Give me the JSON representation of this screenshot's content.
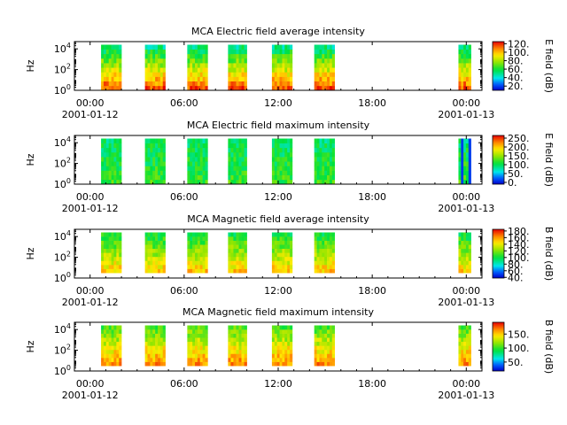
{
  "chart_data": [
    {
      "type": "heatmap",
      "title": "MCA  Electric field average intensity",
      "ylabel": "Hz",
      "colorbar_label": "E field (dB)",
      "colorbar_ticks": [
        "20.",
        "40.",
        "60.",
        "80.",
        "100.",
        "120."
      ],
      "colorbar_range": [
        10,
        125
      ],
      "yticks": [
        "10^0",
        "10^2",
        "10^4"
      ],
      "ylim_log10": [
        0,
        4.7
      ],
      "xticks": [
        "00:00",
        "06:00",
        "12:00",
        "18:00",
        "00:00"
      ],
      "xtick_dates": [
        "2001-01-12",
        "",
        "",
        "",
        "2001-01-13"
      ],
      "x_hours_range": [
        -1,
        25
      ],
      "data_intervals_hours": [
        [
          0.7,
          2.0
        ],
        [
          3.5,
          4.8
        ],
        [
          6.2,
          7.5
        ],
        [
          8.8,
          10.0
        ],
        [
          11.6,
          12.9
        ],
        [
          14.3,
          15.6
        ],
        [
          23.5,
          24.3
        ]
      ],
      "freq_range_log10": [
        0,
        4.4
      ],
      "typical_db_low_freq": 115,
      "typical_db_high_freq": 50
    },
    {
      "type": "heatmap",
      "title": "MCA  Electric field maximum intensity",
      "ylabel": "Hz",
      "colorbar_label": "E field (dB)",
      "colorbar_ticks": [
        "0.",
        "50.",
        "100.",
        "150.",
        "200.",
        "250."
      ],
      "colorbar_range": [
        -10,
        265
      ],
      "yticks": [
        "10^0",
        "10^2",
        "10^4"
      ],
      "ylim_log10": [
        0,
        4.7
      ],
      "xticks": [
        "00:00",
        "06:00",
        "12:00",
        "18:00",
        "00:00"
      ],
      "xtick_dates": [
        "2001-01-12",
        "",
        "",
        "",
        "2001-01-13"
      ],
      "x_hours_range": [
        -1,
        25
      ],
      "data_intervals_hours": [
        [
          0.7,
          2.0
        ],
        [
          3.5,
          4.8
        ],
        [
          6.2,
          7.5
        ],
        [
          8.8,
          10.0
        ],
        [
          11.6,
          12.9
        ],
        [
          14.3,
          15.6
        ],
        [
          23.5,
          24.3
        ]
      ],
      "freq_range_log10": [
        0,
        4.4
      ],
      "typical_db_low_freq": 120,
      "typical_db_high_freq": 95
    },
    {
      "type": "heatmap",
      "title": "MCA  Magnetic field average intensity",
      "ylabel": "Hz",
      "colorbar_label": "B field (dB)",
      "colorbar_ticks": [
        "40.",
        "60.",
        "80.",
        "100.",
        "120.",
        "140.",
        "160.",
        "180."
      ],
      "colorbar_range": [
        38,
        185
      ],
      "yticks": [
        "10^0",
        "10^2",
        "10^4"
      ],
      "ylim_log10": [
        0,
        4.7
      ],
      "xticks": [
        "00:00",
        "06:00",
        "12:00",
        "18:00",
        "00:00"
      ],
      "xtick_dates": [
        "2001-01-12",
        "",
        "",
        "",
        "2001-01-13"
      ],
      "x_hours_range": [
        -1,
        25
      ],
      "data_intervals_hours": [
        [
          0.7,
          2.0
        ],
        [
          3.5,
          4.8
        ],
        [
          6.2,
          7.5
        ],
        [
          8.8,
          10.0
        ],
        [
          11.6,
          12.9
        ],
        [
          14.3,
          15.6
        ],
        [
          23.5,
          24.3
        ]
      ],
      "freq_range_log10": [
        0.5,
        4.4
      ],
      "typical_db_low_freq": 150,
      "typical_db_high_freq": 100
    },
    {
      "type": "heatmap",
      "title": "MCA  Magnetic field maximum intensity",
      "ylabel": "Hz",
      "colorbar_label": "B field (dB)",
      "colorbar_ticks": [
        "50.",
        "100.",
        "150."
      ],
      "colorbar_range": [
        18,
        192
      ],
      "yticks": [
        "10^0",
        "10^2",
        "10^4"
      ],
      "ylim_log10": [
        0,
        4.7
      ],
      "xticks": [
        "00:00",
        "06:00",
        "12:00",
        "18:00",
        "00:00"
      ],
      "xtick_dates": [
        "2001-01-12",
        "",
        "",
        "",
        "2001-01-13"
      ],
      "x_hours_range": [
        -1,
        25
      ],
      "data_intervals_hours": [
        [
          0.7,
          2.0
        ],
        [
          3.5,
          4.8
        ],
        [
          6.2,
          7.5
        ],
        [
          8.8,
          10.0
        ],
        [
          11.6,
          12.9
        ],
        [
          14.3,
          15.6
        ],
        [
          23.5,
          24.3
        ]
      ],
      "freq_range_log10": [
        0.5,
        4.4
      ],
      "typical_db_low_freq": 165,
      "typical_db_high_freq": 105
    }
  ]
}
